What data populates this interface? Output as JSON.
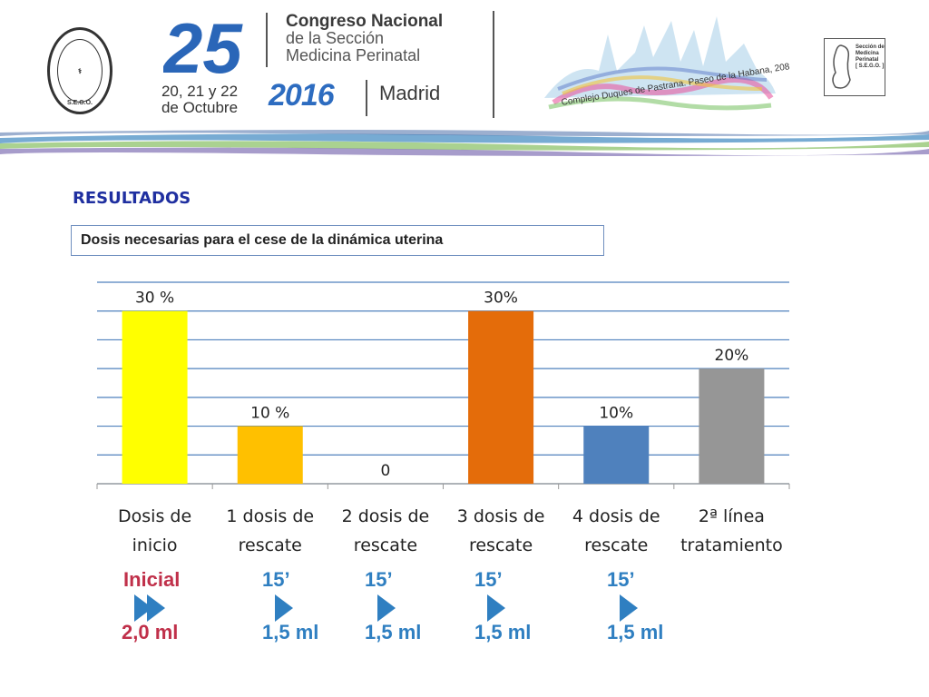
{
  "header": {
    "seal_text": "S.E.G.O.",
    "dates": [
      "20, 21 y 22",
      "de Octubre"
    ],
    "congress_lines": [
      "Congreso Nacional",
      "de la Sección",
      "Medicina Perinatal"
    ],
    "year": "2016",
    "city": "Madrid",
    "venue": "Complejo Duques de Pastrana. Paseo de la Habana, 208",
    "edition": "25",
    "section_logo_lines": [
      "Sección de",
      "Medicina",
      "Perinatal",
      "[ S.E.G.O. ]"
    ]
  },
  "section_title": "RESULTADOS",
  "subtitle": "Dosis necesarias para el cese de la dinámica uterina",
  "chart_data": {
    "type": "bar",
    "title": "",
    "xlabel": "",
    "ylabel": "",
    "ylim": [
      0,
      35
    ],
    "grid": true,
    "categories": [
      [
        "Dosis de",
        "inicio"
      ],
      [
        "1 dosis de",
        "rescate"
      ],
      [
        "2 dosis de",
        "rescate"
      ],
      [
        "3 dosis de",
        "rescate"
      ],
      [
        "4 dosis de",
        "rescate"
      ],
      [
        "2ª línea",
        "tratamiento"
      ]
    ],
    "values": [
      30,
      10,
      0,
      30,
      10,
      20
    ],
    "data_labels": [
      "30 %",
      "10 %",
      "0",
      "30%",
      "10%",
      "20%"
    ],
    "colors": [
      "#ffff00",
      "#ffc000",
      "#ffffff",
      "#e46c0a",
      "#4f81bd",
      "#969696"
    ],
    "gridline_color": "#4f81bd"
  },
  "protocol": [
    {
      "top": "Inicial",
      "bottom": "2,0 ml",
      "color": "#c0304a",
      "arrow": "double"
    },
    {
      "top": "15’",
      "bottom": "1,5 ml",
      "color": "#2f7fc1",
      "arrow": "single"
    },
    {
      "top": "15’",
      "bottom": "1,5 ml",
      "color": "#2f7fc1",
      "arrow": "single"
    },
    {
      "top": "15’",
      "bottom": "1,5 ml",
      "color": "#2f7fc1",
      "arrow": "single"
    },
    {
      "top": "15’",
      "bottom": "1,5 ml",
      "color": "#2f7fc1",
      "arrow": "single"
    }
  ]
}
